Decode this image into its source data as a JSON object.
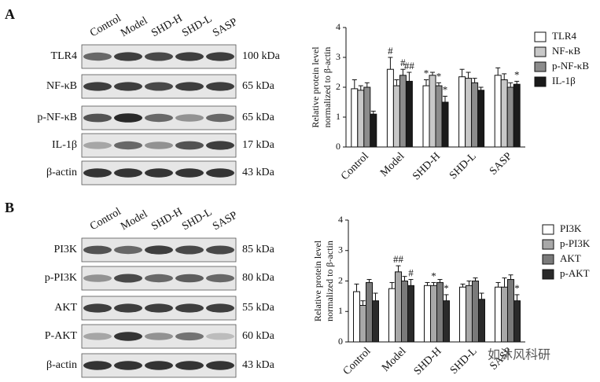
{
  "panels": [
    {
      "label": "A",
      "lanes": [
        "Control",
        "Model",
        "SHD-H",
        "SHD-L",
        "SASP"
      ],
      "blots": [
        {
          "name": "TLR4",
          "size": "100 kDa"
        },
        {
          "name": "NF-κB",
          "size": "65 kDa"
        },
        {
          "name": "p-NF-κB",
          "size": "65 kDa"
        },
        {
          "name": "IL-1β",
          "size": "17 kDa"
        },
        {
          "name": "β-actin",
          "size": "43 kDa"
        }
      ]
    },
    {
      "label": "B",
      "lanes": [
        "Control",
        "Model",
        "SHD-H",
        "SHD-L",
        "SASP"
      ],
      "blots": [
        {
          "name": "PI3K",
          "size": "85 kDa"
        },
        {
          "name": "p-PI3K",
          "size": "80 kDa"
        },
        {
          "name": "AKT",
          "size": "55 kDa"
        },
        {
          "name": "P-AKT",
          "size": "60 kDa"
        },
        {
          "name": "β-actin",
          "size": "43 kDa"
        }
      ]
    }
  ],
  "chart_data": [
    {
      "type": "bar",
      "ylabel": [
        "Relative protein level",
        "normalized to β-actin"
      ],
      "categories": [
        "Control",
        "Model",
        "SHD-H",
        "SHD-L",
        "SASP"
      ],
      "ylim": [
        0,
        4
      ],
      "yticks": [
        0,
        1,
        2,
        3,
        4
      ],
      "series": [
        {
          "name": "TLR4",
          "color": "#ffffff",
          "values": [
            1.95,
            2.6,
            2.05,
            2.35,
            2.4
          ],
          "errors": [
            0.3,
            0.4,
            0.2,
            0.25,
            0.25
          ],
          "markers": [
            null,
            "#",
            "*",
            null,
            null
          ]
        },
        {
          "name": "NF-κB",
          "color": "#c8c8c8",
          "values": [
            1.9,
            2.05,
            2.4,
            2.3,
            2.25
          ],
          "errors": [
            0.15,
            0.2,
            0.1,
            0.2,
            0.2
          ],
          "markers": [
            null,
            null,
            null,
            null,
            null
          ]
        },
        {
          "name": "p-NF-κB",
          "color": "#8c8c8c",
          "values": [
            2.0,
            2.4,
            2.05,
            2.15,
            2.0
          ],
          "errors": [
            0.15,
            0.2,
            0.1,
            0.15,
            0.15
          ],
          "markers": [
            null,
            "#",
            "*",
            null,
            null
          ]
        },
        {
          "name": "IL-1β",
          "color": "#1a1a1a",
          "values": [
            1.1,
            2.2,
            1.5,
            1.9,
            2.1
          ],
          "errors": [
            0.1,
            0.3,
            0.2,
            0.1,
            0.1
          ],
          "markers": [
            null,
            "##",
            "*",
            null,
            "*"
          ]
        }
      ]
    },
    {
      "type": "bar",
      "ylabel": [
        "Relative protein level",
        "normalized to β-actin"
      ],
      "categories": [
        "Control",
        "Model",
        "SHD-H",
        "SHD-L",
        "SASP"
      ],
      "ylim": [
        0,
        4
      ],
      "yticks": [
        0,
        1,
        2,
        3,
        4
      ],
      "series": [
        {
          "name": "PI3K",
          "color": "#ffffff",
          "values": [
            1.65,
            1.75,
            1.85,
            1.8,
            1.8
          ],
          "errors": [
            0.25,
            0.2,
            0.1,
            0.1,
            0.15
          ],
          "markers": [
            null,
            null,
            null,
            null,
            null
          ]
        },
        {
          "name": "p-PI3K",
          "color": "#a8a8a8",
          "values": [
            1.2,
            2.3,
            1.85,
            1.85,
            1.8
          ],
          "errors": [
            0.15,
            0.2,
            0.1,
            0.15,
            0.3
          ],
          "markers": [
            null,
            "##",
            "*",
            null,
            null
          ]
        },
        {
          "name": "AKT",
          "color": "#7a7a7a",
          "values": [
            1.95,
            2.0,
            1.95,
            2.0,
            2.05
          ],
          "errors": [
            0.1,
            0.15,
            0.1,
            0.1,
            0.15
          ],
          "markers": [
            null,
            null,
            null,
            null,
            null
          ]
        },
        {
          "name": "p-AKT",
          "color": "#2a2a2a",
          "values": [
            1.35,
            1.85,
            1.35,
            1.4,
            1.35
          ],
          "errors": [
            0.25,
            0.2,
            0.2,
            0.2,
            0.2
          ],
          "markers": [
            null,
            "#",
            "*",
            null,
            "*"
          ]
        }
      ]
    }
  ],
  "watermark": "如沐风科研"
}
